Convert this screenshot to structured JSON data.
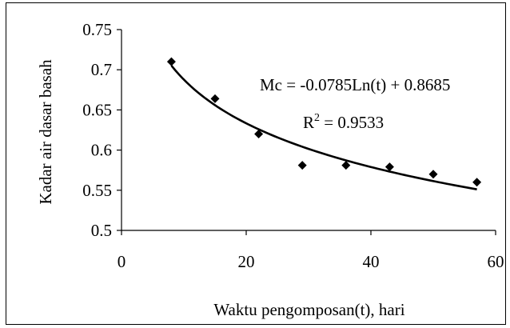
{
  "chart_data": {
    "type": "scatter",
    "title": "",
    "xlabel": "Waktu pengomposan(t), hari",
    "ylabel": "Kadar air  dasar basah",
    "xlim": [
      0,
      60
    ],
    "ylim": [
      0.5,
      0.75
    ],
    "xticks": [
      "0",
      "20",
      "40",
      "60"
    ],
    "yticks": [
      "0.5",
      "0.55",
      "0.6",
      "0.65",
      "0.7",
      "0.75"
    ],
    "grid": false,
    "legend": "none",
    "series": [
      {
        "marker": "diamond",
        "color": "#000000",
        "x": [
          8,
          15,
          22,
          29,
          36,
          43,
          50,
          57
        ],
        "y": [
          0.71,
          0.664,
          0.62,
          0.581,
          0.581,
          0.579,
          0.57,
          0.56
        ]
      }
    ],
    "trendline": {
      "type": "logarithmic",
      "a": -0.0785,
      "b": 0.8685,
      "x_range": [
        8,
        57
      ],
      "equation": "Mc = -0.0785Ln(t) + 0.8685",
      "r2_prefix": "R",
      "r2_sup": "2",
      "r2_suffix": " = 0.9533"
    }
  }
}
